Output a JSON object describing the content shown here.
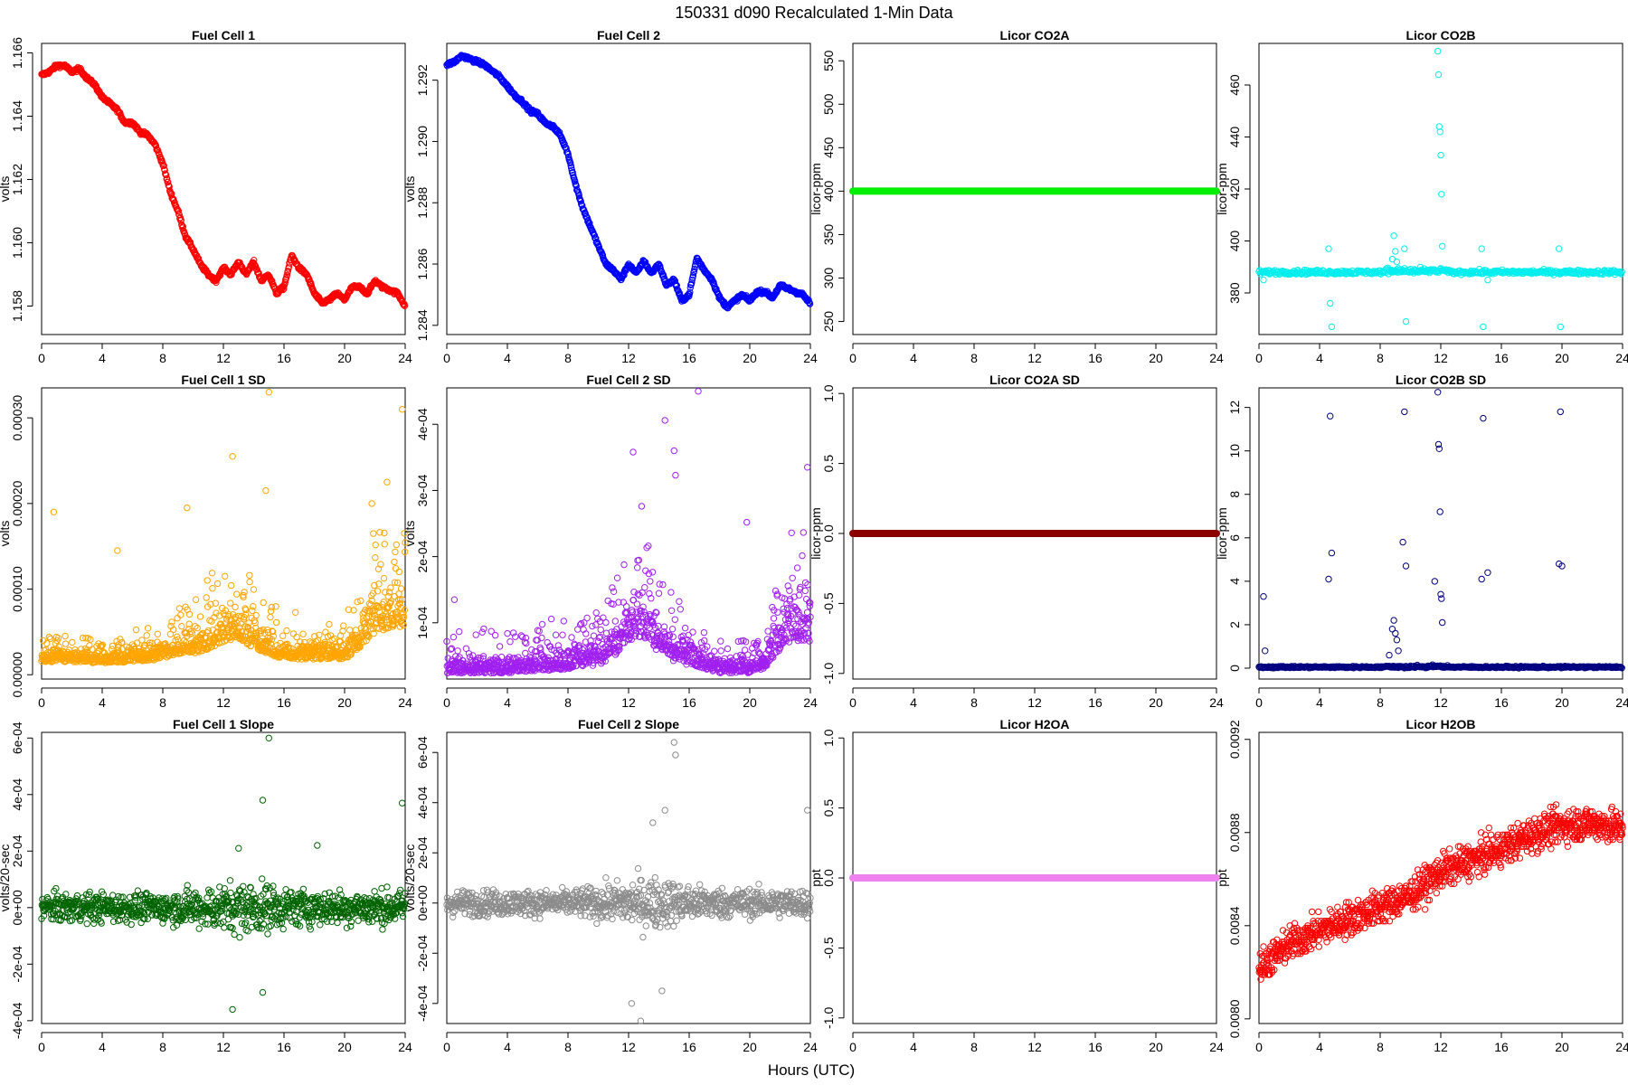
{
  "figure": {
    "title": "150331    d090    Recalculated 1-Min Data",
    "xlabel": "Hours (UTC)"
  },
  "chart_data": [
    {
      "type": "scatter",
      "title": "Fuel Cell 1",
      "ylabel": "volts",
      "color": "#ff0000",
      "xlim": [
        0,
        24
      ],
      "ylim": [
        1.1571,
        1.1663
      ],
      "xticks": [
        "0",
        "4",
        "8",
        "12",
        "16",
        "20",
        "24"
      ],
      "yticks": [
        1.158,
        1.16,
        1.162,
        1.164,
        1.166
      ],
      "yticklabels": [
        "1.158",
        "1.160",
        "1.162",
        "1.164",
        "1.166"
      ],
      "style": "band",
      "x": [
        0,
        0.5,
        1,
        1.5,
        2,
        2.5,
        3,
        3.5,
        4,
        4.5,
        5,
        5.5,
        6,
        6.5,
        7,
        7.5,
        8,
        8.5,
        9,
        9.5,
        10,
        10.5,
        11,
        11.5,
        12,
        12.5,
        13,
        13.5,
        14,
        14.5,
        15,
        15.5,
        16,
        16.5,
        17,
        17.5,
        18,
        18.5,
        19,
        19.5,
        20,
        20.5,
        21,
        21.5,
        22,
        22.5,
        23,
        23.5,
        24
      ],
      "values": [
        1.1653,
        1.1654,
        1.1656,
        1.1656,
        1.1654,
        1.1655,
        1.1652,
        1.165,
        1.1646,
        1.1644,
        1.1642,
        1.1638,
        1.1638,
        1.1635,
        1.1634,
        1.1631,
        1.1625,
        1.1616,
        1.161,
        1.1602,
        1.1598,
        1.1593,
        1.159,
        1.1588,
        1.1592,
        1.159,
        1.1594,
        1.159,
        1.1594,
        1.1588,
        1.159,
        1.1584,
        1.1586,
        1.1596,
        1.1592,
        1.159,
        1.1584,
        1.1581,
        1.1582,
        1.1584,
        1.1582,
        1.1586,
        1.1586,
        1.1584,
        1.1588,
        1.1586,
        1.1585,
        1.1584,
        1.158
      ]
    },
    {
      "type": "scatter",
      "title": "Fuel Cell 2",
      "ylabel": "volts",
      "color": "#0000ff",
      "xlim": [
        0,
        24
      ],
      "ylim": [
        1.2837,
        1.2932
      ],
      "xticks": [
        "0",
        "4",
        "8",
        "12",
        "16",
        "20",
        "24"
      ],
      "yticks": [
        1.284,
        1.286,
        1.288,
        1.29,
        1.292
      ],
      "yticklabels": [
        "1.284",
        "1.286",
        "1.288",
        "1.290",
        "1.292"
      ],
      "style": "band",
      "x": [
        0,
        0.5,
        1,
        1.5,
        2,
        2.5,
        3,
        3.5,
        4,
        4.5,
        5,
        5.5,
        6,
        6.5,
        7,
        7.5,
        8,
        8.5,
        9,
        9.5,
        10,
        10.5,
        11,
        11.5,
        12,
        12.5,
        13,
        13.5,
        14,
        14.5,
        15,
        15.5,
        16,
        16.5,
        17,
        17.5,
        18,
        18.5,
        19,
        19.5,
        20,
        20.5,
        21,
        21.5,
        22,
        22.5,
        23,
        23.5,
        24
      ],
      "values": [
        1.2925,
        1.2926,
        1.2928,
        1.2927,
        1.2926,
        1.2925,
        1.2923,
        1.2921,
        1.2918,
        1.2915,
        1.2913,
        1.291,
        1.2909,
        1.2906,
        1.2905,
        1.2902,
        1.2896,
        1.2886,
        1.2878,
        1.2872,
        1.2866,
        1.286,
        1.2858,
        1.2855,
        1.286,
        1.2857,
        1.2861,
        1.2857,
        1.286,
        1.2853,
        1.2855,
        1.2848,
        1.285,
        1.2862,
        1.2858,
        1.2855,
        1.2849,
        1.2846,
        1.2848,
        1.285,
        1.2848,
        1.2851,
        1.2851,
        1.2849,
        1.2853,
        1.2852,
        1.2851,
        1.285,
        1.2847
      ]
    },
    {
      "type": "scatter",
      "title": "Licor CO2A",
      "ylabel": "licor-ppm",
      "color": "#00ee00",
      "xlim": [
        0,
        24
      ],
      "ylim": [
        235,
        570
      ],
      "xticks": [
        "0",
        "4",
        "8",
        "12",
        "16",
        "20",
        "24"
      ],
      "yticks": [
        250,
        300,
        350,
        400,
        450,
        500,
        550
      ],
      "yticklabels": [
        "250",
        "300",
        "350",
        "400",
        "450",
        "500",
        "550"
      ],
      "style": "line",
      "x": [
        0,
        24
      ],
      "values": [
        400,
        400
      ]
    },
    {
      "type": "scatter",
      "title": "Licor CO2B",
      "ylabel": "licor-ppm",
      "color": "#00eeee",
      "xlim": [
        0,
        24
      ],
      "ylim": [
        364,
        476
      ],
      "xticks": [
        "0",
        "4",
        "8",
        "12",
        "16",
        "20",
        "24"
      ],
      "yticks": [
        380,
        400,
        420,
        440,
        460
      ],
      "yticklabels": [
        "380",
        "400",
        "420",
        "440",
        "460"
      ],
      "style": "baseline-spikes",
      "baseline": 388,
      "noise": 0.8,
      "x": [
        0.3,
        4.6,
        4.7,
        4.8,
        8.8,
        8.9,
        9.0,
        9.1,
        9.6,
        9.7,
        11.8,
        11.85,
        11.9,
        11.95,
        12.0,
        12.05,
        12.1,
        14.7,
        14.8,
        15.1,
        19.8,
        19.9
      ],
      "values": [
        385,
        397,
        376,
        367,
        393,
        402,
        396,
        392,
        397,
        369,
        473,
        464,
        444,
        442,
        433,
        418,
        398,
        397,
        367,
        385,
        397,
        367
      ]
    },
    {
      "type": "scatter",
      "title": "Fuel Cell 1 SD",
      "ylabel": "volts",
      "color": "#ffa500",
      "xlim": [
        0,
        24
      ],
      "ylim": [
        -5e-06,
        0.000335
      ],
      "xticks": [
        "0",
        "4",
        "8",
        "12",
        "16",
        "20",
        "24"
      ],
      "yticks": [
        0,
        0.0001,
        0.0002,
        0.0003
      ],
      "yticklabels": [
        "0.00000",
        "0.00010",
        "0.00020",
        "0.00030"
      ],
      "style": "scatter-noise",
      "scale": 0.00012,
      "x": [
        0,
        2,
        4,
        6,
        8,
        9,
        10,
        11,
        12,
        13,
        14,
        15,
        16,
        17,
        18,
        19,
        20,
        21,
        22,
        23,
        24
      ],
      "values": [
        2.5e-05,
        2.5e-05,
        2.2e-05,
        2.5e-05,
        3e-05,
        4e-05,
        4e-05,
        5e-05,
        6e-05,
        7e-05,
        5e-05,
        4e-05,
        3e-05,
        3e-05,
        3e-05,
        3e-05,
        3e-05,
        5e-05,
        8e-05,
        9e-05,
        9e-05
      ],
      "outliers_x": [
        0.8,
        5.0,
        9.6,
        12.6,
        14.8,
        15.0,
        21.8,
        22.8,
        23.8
      ],
      "outliers_y": [
        0.00019,
        0.000145,
        0.000195,
        0.000255,
        0.000215,
        0.00033,
        0.0002,
        0.000225,
        0.00031
      ]
    },
    {
      "type": "scatter",
      "title": "Fuel Cell 2 SD",
      "ylabel": "volts",
      "color": "#a020f0",
      "xlim": [
        0,
        24
      ],
      "ylim": [
        1.5e-05,
        0.000455
      ],
      "xticks": [
        "0",
        "4",
        "8",
        "12",
        "16",
        "20",
        "24"
      ],
      "yticks": [
        0.0001,
        0.0002,
        0.0003,
        0.0004
      ],
      "yticklabels": [
        "1e-04",
        "2e-04",
        "3e-04",
        "4e-04"
      ],
      "style": "scatter-noise",
      "scale": 0.00012,
      "x": [
        0,
        2,
        4,
        6,
        8,
        10,
        11,
        12,
        13,
        14,
        15,
        16,
        17,
        18,
        19,
        20,
        21,
        22,
        23,
        24
      ],
      "values": [
        4e-05,
        4e-05,
        4e-05,
        4.5e-05,
        5e-05,
        6e-05,
        8e-05,
        0.00012,
        0.00013,
        9e-05,
        7e-05,
        6e-05,
        5e-05,
        4e-05,
        4e-05,
        4e-05,
        5e-05,
        0.0001,
        0.00012,
        0.00012
      ],
      "outliers_x": [
        0.5,
        12.3,
        14.4,
        15.0,
        15.1,
        16.6,
        19.8,
        23.8
      ],
      "outliers_y": [
        0.000135,
        0.000358,
        0.000406,
        0.00036,
        0.000323,
        0.00045,
        0.000252,
        0.000335
      ]
    },
    {
      "type": "scatter",
      "title": "Licor CO2A SD",
      "ylabel": "licor-ppm",
      "color": "#8b0000",
      "xlim": [
        0,
        24
      ],
      "ylim": [
        -1.04,
        1.04
      ],
      "xticks": [
        "0",
        "4",
        "8",
        "12",
        "16",
        "20",
        "24"
      ],
      "yticks": [
        -1.0,
        -0.5,
        0.0,
        0.5,
        1.0
      ],
      "yticklabels": [
        "-1.0",
        "-0.5",
        "0.0",
        "0.5",
        "1.0"
      ],
      "style": "line",
      "x": [
        0,
        24
      ],
      "values": [
        0,
        0
      ]
    },
    {
      "type": "scatter",
      "title": "Licor CO2B SD",
      "ylabel": "licor-ppm",
      "color": "#000080",
      "xlim": [
        0,
        24
      ],
      "ylim": [
        -0.5,
        12.9
      ],
      "xticks": [
        "0",
        "4",
        "8",
        "12",
        "16",
        "20",
        "24"
      ],
      "yticks": [
        0,
        2,
        4,
        6,
        8,
        10,
        12
      ],
      "yticklabels": [
        "0",
        "2",
        "4",
        "6",
        "8",
        "10",
        "12"
      ],
      "style": "baseline-spikes",
      "baseline": 0.05,
      "noise": 0.04,
      "x": [
        0.3,
        0.4,
        4.6,
        4.7,
        4.8,
        8.6,
        8.8,
        8.9,
        9.0,
        9.1,
        9.2,
        9.5,
        9.6,
        9.7,
        11.6,
        11.8,
        11.85,
        11.9,
        11.95,
        12.0,
        12.05,
        12.1,
        14.7,
        14.8,
        15.1,
        19.8,
        19.9,
        20.0
      ],
      "values": [
        3.3,
        0.8,
        4.1,
        11.6,
        5.3,
        0.6,
        1.8,
        2.2,
        1.6,
        1.3,
        0.8,
        5.8,
        11.8,
        4.7,
        4.0,
        12.7,
        10.3,
        10.1,
        7.2,
        3.4,
        3.2,
        2.1,
        4.1,
        11.5,
        4.4,
        4.8,
        11.8,
        4.7
      ]
    },
    {
      "type": "scatter",
      "title": "Fuel Cell 1 Slope",
      "ylabel": "volts/20-sec",
      "color": "#006400",
      "xlim": [
        0,
        24
      ],
      "ylim": [
        -0.00041,
        0.00062
      ],
      "xticks": [
        "0",
        "4",
        "8",
        "12",
        "16",
        "20",
        "24"
      ],
      "yticks": [
        -0.0004,
        -0.0002,
        0,
        0.0002,
        0.0004,
        0.0006
      ],
      "yticklabels": [
        "-4e-04",
        "-2e-04",
        "0e+00",
        "2e-04",
        "4e-04",
        "6e-04"
      ],
      "style": "scatter-sym",
      "scale": 5e-05,
      "x": [
        0,
        4,
        8,
        10,
        12,
        13,
        14,
        15,
        16,
        18,
        20,
        22,
        24
      ],
      "values": [
        0,
        0,
        0,
        0,
        0,
        0,
        0,
        0,
        0,
        0,
        0,
        0,
        0
      ],
      "spread": [
        1,
        1,
        1,
        1.3,
        1.6,
        1.8,
        1.8,
        1.6,
        1.4,
        1.2,
        1.2,
        1.2,
        1.2
      ],
      "outliers_x": [
        12.6,
        13.0,
        14.6,
        15.0,
        18.2,
        23.8,
        12.6,
        14.6
      ],
      "outliers_y": [
        -0.00036,
        0.00021,
        0.00038,
        0.0006,
        0.00022,
        0.00037,
        -3e-05,
        -0.0003
      ]
    },
    {
      "type": "scatter",
      "title": "Fuel Cell 2 Slope",
      "ylabel": "volts/20-sec",
      "color": "#8c8c8c",
      "xlim": [
        0,
        24
      ],
      "ylim": [
        -0.00048,
        0.00068
      ],
      "xticks": [
        "0",
        "4",
        "8",
        "12",
        "16",
        "20",
        "24"
      ],
      "yticks": [
        -0.0004,
        -0.0002,
        0,
        0.0002,
        0.0004,
        0.0006
      ],
      "yticklabels": [
        "-4e-04",
        "-2e-04",
        "0e+00",
        "2e-04",
        "4e-04",
        "6e-04"
      ],
      "style": "scatter-sym",
      "scale": 5e-05,
      "x": [
        0,
        4,
        8,
        10,
        12,
        13,
        14,
        15,
        16,
        18,
        20,
        22,
        24
      ],
      "values": [
        0,
        0,
        0,
        0,
        0,
        0,
        0,
        0,
        0,
        0,
        0,
        0,
        0
      ],
      "spread": [
        1,
        1,
        1,
        1.3,
        1.8,
        2.0,
        2.0,
        1.7,
        1.4,
        1.2,
        1.1,
        1.1,
        1.1
      ],
      "outliers_x": [
        12.8,
        13.6,
        14.4,
        15.0,
        15.1,
        23.8,
        12.2,
        14.2
      ],
      "outliers_y": [
        -0.00047,
        0.00032,
        0.00037,
        0.00064,
        0.00059,
        0.00037,
        -0.0004,
        -0.00035
      ]
    },
    {
      "type": "scatter",
      "title": "Licor H2OA",
      "ylabel": "ppt",
      "color": "#ee82ee",
      "xlim": [
        0,
        24
      ],
      "ylim": [
        -1.04,
        1.04
      ],
      "xticks": [
        "0",
        "4",
        "8",
        "12",
        "16",
        "20",
        "24"
      ],
      "yticks": [
        -1.0,
        -0.5,
        0.0,
        0.5,
        1.0
      ],
      "yticklabels": [
        "-1.0",
        "-0.5",
        "0.0",
        "0.5",
        "1.0"
      ],
      "style": "line",
      "x": [
        0,
        24
      ],
      "values": [
        0,
        0
      ]
    },
    {
      "type": "scatter",
      "title": "Licor H2OB",
      "ylabel": "ppt",
      "color": "#ff0000",
      "xlim": [
        0,
        24
      ],
      "ylim": [
        0.00798,
        0.00923
      ],
      "xticks": [
        "0",
        "4",
        "8",
        "12",
        "16",
        "20",
        "24"
      ],
      "yticks": [
        0.008,
        0.0084,
        0.0088,
        0.0092
      ],
      "yticklabels": [
        "0.0080",
        "0.0084",
        "0.0088",
        "0.0092"
      ],
      "style": "scatter-trend",
      "spread": 0.00016,
      "step": 1e-05,
      "x": [
        0,
        2,
        4,
        6,
        8,
        10,
        12,
        14,
        16,
        18,
        20,
        22,
        24
      ],
      "values": [
        0.00822,
        0.00832,
        0.00838,
        0.00843,
        0.00848,
        0.00853,
        0.00863,
        0.00868,
        0.00873,
        0.00879,
        0.00883,
        0.00884,
        0.00882
      ]
    }
  ]
}
